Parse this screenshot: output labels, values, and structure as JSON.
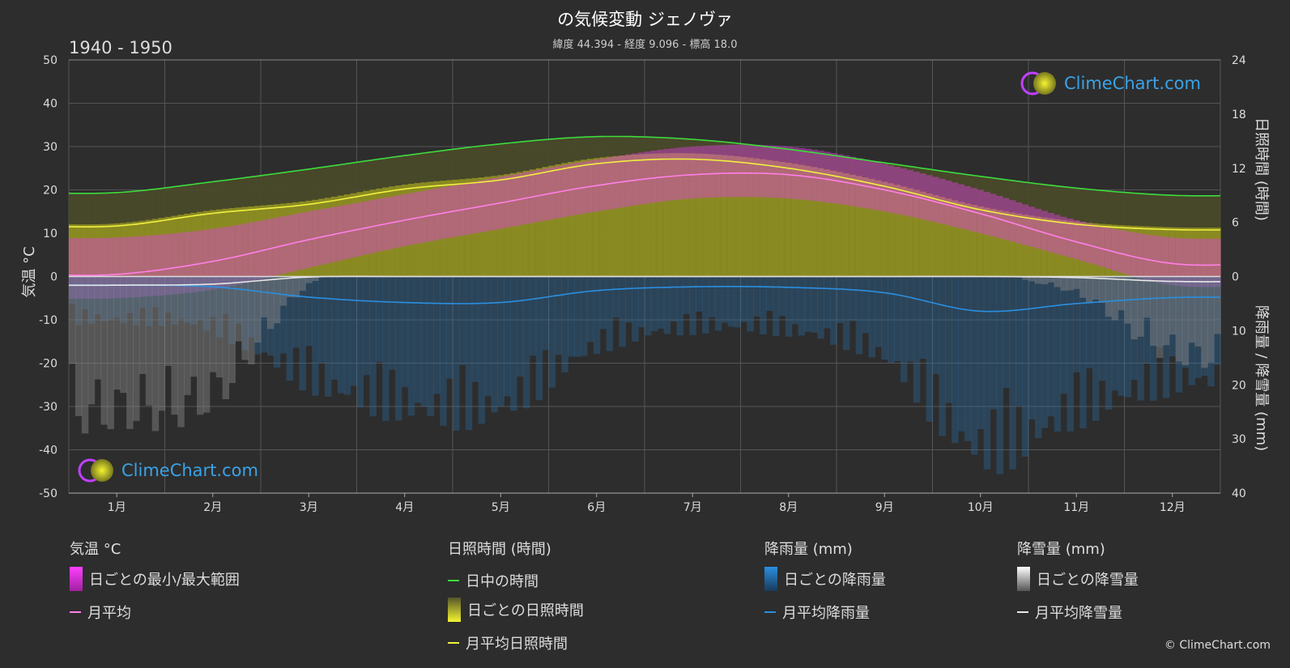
{
  "header": {
    "title": "の気候変動 ジェノヴァ",
    "subtitle": "緯度 44.394 - 経度 9.096 - 標高 18.0",
    "period": "1940 - 1950"
  },
  "logo": {
    "text": "ClimeChart.com"
  },
  "copyright": "© ClimeChart.com",
  "colors": {
    "background": "#2d2d2d",
    "temp_range": "#e040e0",
    "temp_mean": "#ff7fe8",
    "daylight": "#3ddc3d",
    "sunshine_fill": "#a0a020",
    "sunshine_mean": "#f0f040",
    "rain_fill": "#2a6fa8",
    "rain_mean": "#2a8fe0",
    "snow_fill": "#8a8a8a",
    "snow_mean": "#e8e8e8",
    "logo": "#3aa3e8"
  },
  "legend": {
    "groups": [
      {
        "title": "気温 °C",
        "items": [
          {
            "icon": "magenta-gradient-box-icon",
            "label": "日ごとの最小/最大範囲"
          },
          {
            "icon": "pink-line-icon",
            "label": "月平均"
          }
        ]
      },
      {
        "title": "日照時間 (時間)",
        "items": [
          {
            "icon": "green-line-icon",
            "label": "日中の時間"
          },
          {
            "icon": "yellow-gradient-box-icon",
            "label": "日ごとの日照時間"
          },
          {
            "icon": "yellow-line-icon",
            "label": "月平均日照時間"
          }
        ]
      },
      {
        "title": "降雨量 (mm)",
        "items": [
          {
            "icon": "blue-gradient-box-icon",
            "label": "日ごとの降雨量"
          },
          {
            "icon": "blue-line-icon",
            "label": "月平均降雨量"
          }
        ]
      },
      {
        "title": "降雪量 (mm)",
        "items": [
          {
            "icon": "white-gradient-box-icon",
            "label": "日ごとの降雪量"
          },
          {
            "icon": "white-line-icon",
            "label": "月平均降雪量"
          }
        ]
      }
    ]
  },
  "chart_data": {
    "type": "line",
    "categories": [
      "1月",
      "2月",
      "3月",
      "4月",
      "5月",
      "6月",
      "7月",
      "8月",
      "9月",
      "10月",
      "11月",
      "12月"
    ],
    "axes": {
      "left": {
        "label": "気温 °C",
        "range": [
          -50,
          50
        ],
        "ticks": [
          "50",
          "40",
          "30",
          "20",
          "10",
          "0",
          "-10",
          "-20",
          "-30",
          "-40",
          "-50"
        ]
      },
      "right_top": {
        "label": "日照時間 (時間)",
        "range": [
          0,
          24
        ],
        "ticks": [
          "24",
          "18",
          "12",
          "6",
          "0"
        ]
      },
      "right_bottom": {
        "label": "降雨量 / 降雪量 (mm)",
        "range": [
          0,
          40
        ],
        "ticks": [
          "0",
          "10",
          "20",
          "30",
          "40"
        ]
      }
    },
    "grid": true,
    "series": [
      {
        "name": "日中の時間",
        "axis": "hours",
        "values": [
          9.3,
          10.5,
          11.9,
          13.4,
          14.7,
          15.5,
          15.2,
          14.1,
          12.6,
          11.1,
          9.8,
          9.0
        ]
      },
      {
        "name": "月平均日照時間",
        "axis": "hours",
        "values": [
          5.6,
          7.0,
          8.0,
          9.7,
          10.7,
          12.5,
          13.0,
          12.0,
          10.0,
          7.4,
          5.8,
          5.2
        ]
      },
      {
        "name": "月平均",
        "axis": "temperature",
        "values": [
          0.5,
          3.5,
          8.5,
          13.0,
          17.0,
          21.0,
          23.5,
          23.5,
          20.0,
          14.5,
          8.0,
          3.0
        ]
      },
      {
        "name": "月平均降雨量",
        "axis": "precipitation",
        "values": [
          1.6,
          1.9,
          3.8,
          4.8,
          4.8,
          2.6,
          1.9,
          2.0,
          3.0,
          6.4,
          5.0,
          3.9
        ]
      },
      {
        "name": "月平均降雪量",
        "axis": "precipitation",
        "values": [
          1.6,
          1.4,
          0.1,
          0.0,
          0.0,
          0.0,
          0.0,
          0.0,
          0.0,
          0.0,
          0.2,
          0.9
        ]
      },
      {
        "name": "日ごとの最小/最大範囲",
        "axis": "temperature",
        "min": [
          -5,
          -3,
          2,
          7,
          11,
          15,
          18,
          18,
          15,
          10,
          4,
          -2
        ],
        "max": [
          9,
          11,
          15,
          19,
          23,
          27,
          30,
          30,
          26,
          20,
          13,
          9
        ]
      }
    ]
  }
}
